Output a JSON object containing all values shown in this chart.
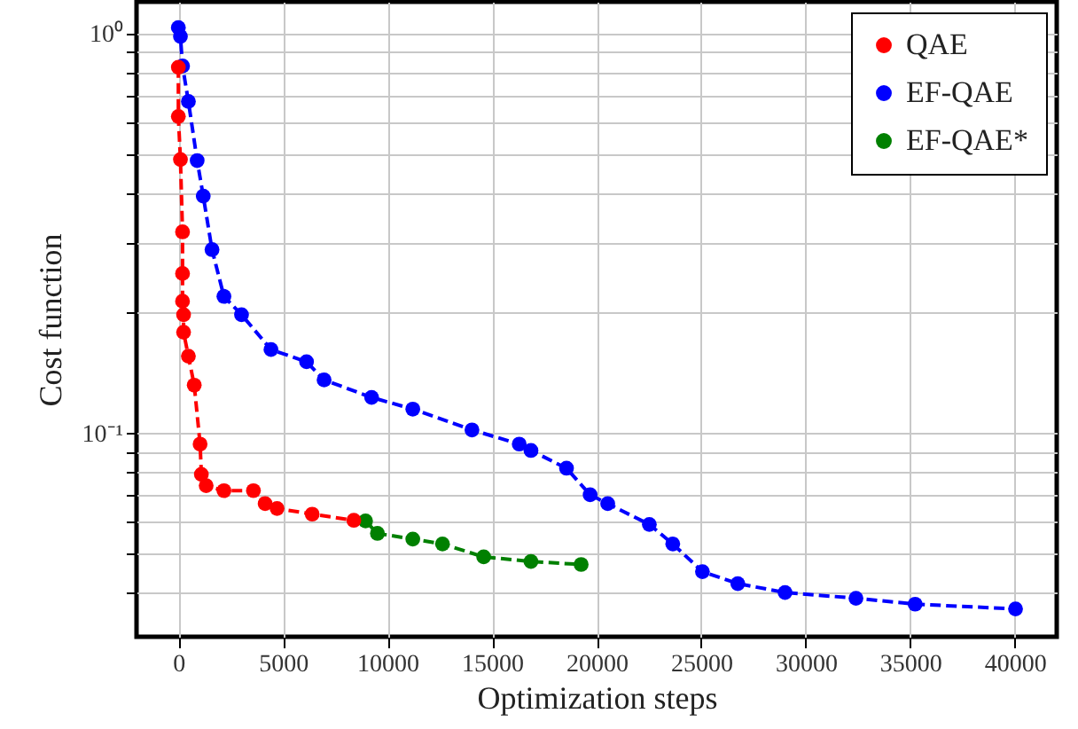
{
  "chart_data": {
    "type": "line",
    "xlabel": "Optimization steps",
    "ylabel": "Cost function",
    "log": "y",
    "grid": true,
    "legend": "top right",
    "marker": "circle",
    "line_style": "dashed",
    "xlim": [
      -2000,
      42000
    ],
    "xticks": [
      0,
      5000,
      10000,
      15000,
      20000,
      25000,
      30000,
      35000,
      40000
    ],
    "ylim": [
      0.031,
      1.2
    ],
    "yticks": [
      {
        "value": 0.04,
        "label": null
      },
      {
        "value": 0.05,
        "label": null
      },
      {
        "value": 0.06,
        "label": null
      },
      {
        "value": 0.07,
        "label": null
      },
      {
        "value": 0.08,
        "label": null
      },
      {
        "value": 0.09,
        "label": null
      },
      {
        "value": 0.1,
        "label": "10⁻¹"
      },
      {
        "value": 0.2,
        "label": null
      },
      {
        "value": 0.3,
        "label": null
      },
      {
        "value": 0.4,
        "label": null
      },
      {
        "value": 0.5,
        "label": null
      },
      {
        "value": 0.6,
        "label": null
      },
      {
        "value": 0.7,
        "label": null
      },
      {
        "value": 0.8,
        "label": null
      },
      {
        "value": 0.9,
        "label": null
      },
      {
        "value": 1,
        "label": "10⁰"
      }
    ],
    "series": [
      {
        "name": "QAE",
        "color": "#ff0000",
        "x": [
          0,
          0,
          100,
          200,
          200,
          200,
          250,
          250,
          480,
          760,
          1040,
          1100,
          1330,
          2180,
          3590,
          4150,
          4720,
          6400,
          8390
        ],
        "values": [
          0.823,
          0.62,
          0.484,
          0.319,
          0.251,
          0.214,
          0.198,
          0.179,
          0.156,
          0.132,
          0.094,
          0.079,
          0.074,
          0.0719,
          0.0719,
          0.0667,
          0.0649,
          0.0628,
          0.0606
        ]
      },
      {
        "name": "EF-QAE",
        "color": "#0000ff",
        "x": [
          0,
          100,
          200,
          480,
          900,
          1190,
          1610,
          2180,
          3020,
          4430,
          6130,
          6970,
          9240,
          11210,
          14040,
          16300,
          16860,
          18560,
          19690,
          20530,
          22520,
          23640,
          25060,
          26750,
          29010,
          32400,
          35230,
          40030
        ],
        "values": [
          1.034,
          0.983,
          0.829,
          0.676,
          0.481,
          0.392,
          0.288,
          0.22,
          0.198,
          0.162,
          0.151,
          0.136,
          0.123,
          0.115,
          0.102,
          0.094,
          0.0906,
          0.0818,
          0.0702,
          0.0667,
          0.0592,
          0.0529,
          0.0451,
          0.0421,
          0.04,
          0.0387,
          0.0374,
          0.0364
        ]
      },
      {
        "name": "EF-QAE*",
        "color": "#008000",
        "x": [
          8950,
          9520,
          11210,
          12630,
          14600,
          16860,
          19260
        ],
        "values": [
          0.0604,
          0.0562,
          0.0544,
          0.0529,
          0.0491,
          0.0478,
          0.047
        ]
      }
    ]
  }
}
